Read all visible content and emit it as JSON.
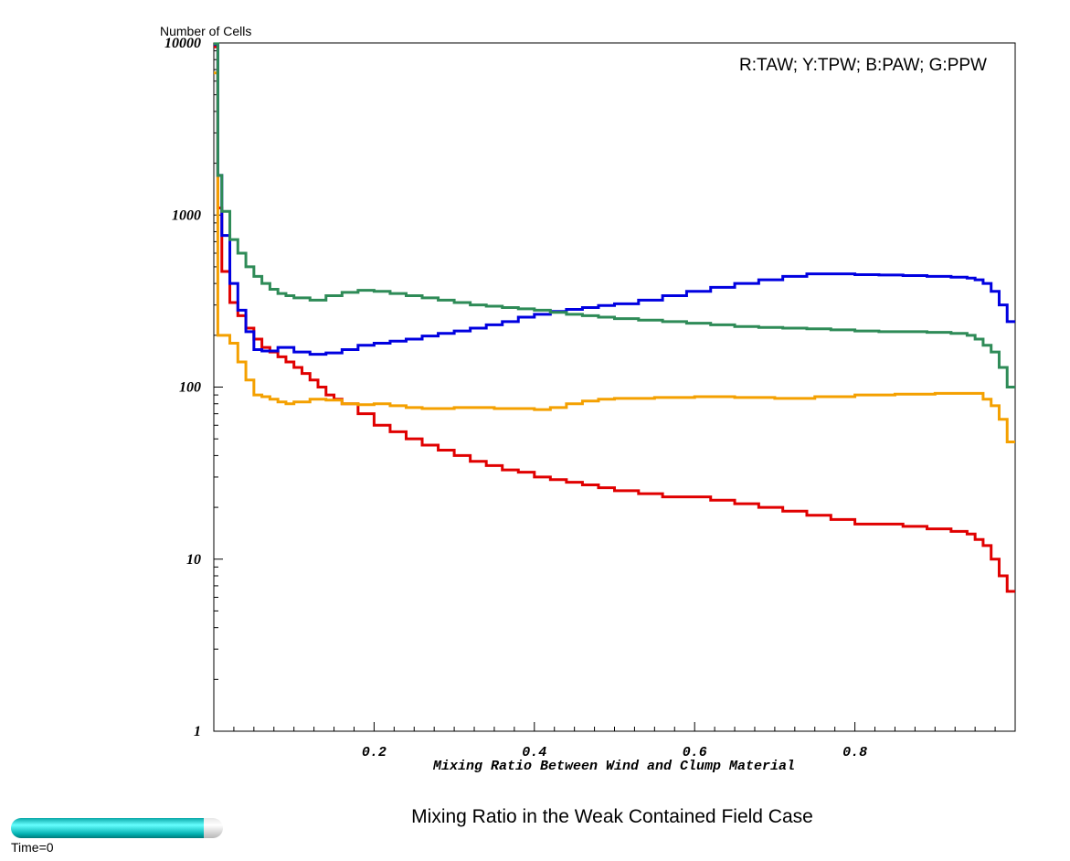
{
  "chart_data": {
    "type": "line",
    "step": true,
    "title": "Mixing Ratio in the Weak Contained Field Case",
    "xlabel": "Mixing Ratio Between Wind and Clump Material",
    "ylabel": "Number of Cells",
    "xlim": [
      0,
      1
    ],
    "ylim": [
      1,
      10000
    ],
    "yscale": "log",
    "xticks": [
      0.2,
      0.4,
      0.6,
      0.8
    ],
    "xtick_labels": [
      "0.2",
      "0.4",
      "0.6",
      "0.8"
    ],
    "yticks": [
      1,
      10,
      100,
      1000,
      10000
    ],
    "ytick_labels": [
      "1",
      "10",
      "100",
      "1000",
      "10000"
    ],
    "grid": false,
    "legend_text": "R:TAW; Y:TPW; B:PAW; G:PPW",
    "legend_position": "top-right",
    "series": [
      {
        "color": "#e00000",
        "x": [
          0,
          0.005,
          0.01,
          0.02,
          0.03,
          0.04,
          0.05,
          0.06,
          0.07,
          0.08,
          0.09,
          0.1,
          0.11,
          0.12,
          0.13,
          0.14,
          0.15,
          0.16,
          0.18,
          0.2,
          0.22,
          0.24,
          0.26,
          0.28,
          0.3,
          0.32,
          0.34,
          0.36,
          0.38,
          0.4,
          0.42,
          0.44,
          0.46,
          0.48,
          0.5,
          0.53,
          0.56,
          0.59,
          0.62,
          0.65,
          0.68,
          0.71,
          0.74,
          0.77,
          0.8,
          0.83,
          0.86,
          0.89,
          0.92,
          0.94,
          0.95,
          0.96,
          0.97,
          0.98,
          0.99,
          1.0
        ],
        "y": [
          9500,
          1100,
          470,
          310,
          260,
          220,
          190,
          170,
          160,
          150,
          140,
          130,
          120,
          110,
          100,
          90,
          85,
          80,
          70,
          60,
          55,
          50,
          46,
          43,
          40,
          37,
          35,
          33,
          32,
          30,
          29,
          28,
          27,
          26,
          25,
          24,
          23,
          23,
          22,
          21,
          20,
          19,
          18,
          17,
          16,
          16,
          15.5,
          15,
          14.5,
          14,
          13,
          12,
          10,
          8,
          6.5,
          6.5
        ]
      },
      {
        "color": "#f4a000",
        "x": [
          0,
          0.005,
          0.02,
          0.03,
          0.04,
          0.05,
          0.06,
          0.07,
          0.08,
          0.09,
          0.1,
          0.12,
          0.14,
          0.16,
          0.18,
          0.2,
          0.22,
          0.24,
          0.26,
          0.28,
          0.3,
          0.35,
          0.4,
          0.42,
          0.44,
          0.46,
          0.48,
          0.5,
          0.55,
          0.6,
          0.65,
          0.7,
          0.75,
          0.8,
          0.85,
          0.9,
          0.94,
          0.96,
          0.97,
          0.98,
          0.99,
          1.0
        ],
        "y": [
          6700,
          200,
          180,
          140,
          110,
          90,
          88,
          85,
          82,
          80,
          82,
          85,
          84,
          80,
          79,
          80,
          78,
          76,
          75,
          75,
          76,
          75,
          74,
          76,
          80,
          83,
          85,
          86,
          87,
          88,
          87,
          86,
          88,
          90,
          91,
          92,
          92,
          85,
          78,
          65,
          48,
          48
        ]
      },
      {
        "color": "#0000e0",
        "x": [
          0,
          0.005,
          0.01,
          0.02,
          0.03,
          0.04,
          0.05,
          0.06,
          0.08,
          0.1,
          0.12,
          0.14,
          0.16,
          0.18,
          0.2,
          0.22,
          0.24,
          0.26,
          0.28,
          0.3,
          0.32,
          0.34,
          0.36,
          0.38,
          0.4,
          0.42,
          0.44,
          0.46,
          0.48,
          0.5,
          0.53,
          0.56,
          0.59,
          0.62,
          0.65,
          0.68,
          0.71,
          0.74,
          0.77,
          0.8,
          0.83,
          0.86,
          0.89,
          0.92,
          0.94,
          0.95,
          0.96,
          0.97,
          0.98,
          0.99,
          1.0
        ],
        "y": [
          9800,
          1700,
          760,
          400,
          280,
          210,
          165,
          162,
          170,
          160,
          155,
          158,
          165,
          175,
          180,
          185,
          190,
          198,
          205,
          212,
          220,
          230,
          240,
          255,
          265,
          275,
          283,
          290,
          298,
          305,
          320,
          340,
          360,
          380,
          400,
          420,
          440,
          455,
          455,
          450,
          448,
          445,
          440,
          435,
          430,
          420,
          400,
          360,
          300,
          240,
          240
        ]
      },
      {
        "color": "#2e8b57",
        "x": [
          0,
          0.005,
          0.01,
          0.02,
          0.03,
          0.04,
          0.05,
          0.06,
          0.07,
          0.08,
          0.09,
          0.1,
          0.12,
          0.14,
          0.16,
          0.18,
          0.2,
          0.22,
          0.24,
          0.26,
          0.28,
          0.3,
          0.32,
          0.34,
          0.36,
          0.38,
          0.4,
          0.42,
          0.44,
          0.46,
          0.48,
          0.5,
          0.53,
          0.56,
          0.59,
          0.62,
          0.65,
          0.68,
          0.71,
          0.74,
          0.77,
          0.8,
          0.83,
          0.86,
          0.89,
          0.92,
          0.94,
          0.95,
          0.96,
          0.97,
          0.98,
          0.99,
          1.0
        ],
        "y": [
          9900,
          1700,
          1050,
          720,
          600,
          500,
          440,
          400,
          370,
          350,
          340,
          330,
          320,
          340,
          355,
          365,
          360,
          350,
          340,
          330,
          320,
          310,
          300,
          295,
          290,
          285,
          280,
          272,
          265,
          260,
          255,
          250,
          245,
          240,
          235,
          230,
          225,
          222,
          220,
          218,
          215,
          212,
          210,
          210,
          208,
          205,
          200,
          190,
          175,
          160,
          130,
          100,
          100
        ]
      }
    ]
  },
  "time_slider": {
    "label": "Time=0",
    "fraction": 0.91
  }
}
